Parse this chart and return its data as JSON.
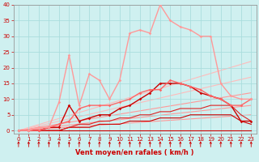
{
  "bg_color": "#cff0f0",
  "grid_color": "#aadddd",
  "xlabel": "Vent moyen/en rafales ( km/h )",
  "xlim": [
    -0.5,
    23.5
  ],
  "ylim": [
    -1,
    40
  ],
  "xticks": [
    0,
    1,
    2,
    3,
    4,
    5,
    6,
    7,
    8,
    9,
    10,
    11,
    12,
    13,
    14,
    15,
    16,
    17,
    18,
    19,
    20,
    21,
    22,
    23
  ],
  "yticks": [
    0,
    5,
    10,
    15,
    20,
    25,
    30,
    35,
    40
  ],
  "linear_lines": [
    {
      "x": [
        0,
        23
      ],
      "y": [
        0,
        5
      ],
      "color": "#ff9999",
      "lw": 0.8
    },
    {
      "x": [
        0,
        23
      ],
      "y": [
        0,
        8
      ],
      "color": "#ff9999",
      "lw": 0.8
    },
    {
      "x": [
        0,
        23
      ],
      "y": [
        0,
        12
      ],
      "color": "#ff9999",
      "lw": 0.8
    },
    {
      "x": [
        0,
        23
      ],
      "y": [
        0,
        17
      ],
      "color": "#ffbbbb",
      "lw": 0.8
    },
    {
      "x": [
        0,
        23
      ],
      "y": [
        0,
        22
      ],
      "color": "#ffbbbb",
      "lw": 0.8
    }
  ],
  "series_flat": {
    "x": [
      0,
      1,
      2,
      3,
      4,
      5,
      6,
      7,
      8,
      9,
      10,
      11,
      12,
      13,
      14,
      15,
      16,
      17,
      18,
      19,
      20,
      21,
      22,
      23
    ],
    "y": [
      0,
      0,
      0,
      0,
      0,
      0,
      0,
      0,
      0,
      0,
      0,
      0,
      0,
      0,
      0,
      0,
      0,
      0,
      0,
      0,
      0,
      0,
      0,
      0
    ],
    "color": "#cc0000",
    "lw": 0.8
  },
  "series_low1": {
    "x": [
      0,
      1,
      2,
      3,
      4,
      5,
      6,
      7,
      8,
      9,
      10,
      11,
      12,
      13,
      14,
      15,
      16,
      17,
      18,
      19,
      20,
      21,
      22,
      23
    ],
    "y": [
      0,
      0,
      0,
      0,
      0,
      1,
      1,
      1,
      2,
      2,
      2,
      3,
      3,
      3,
      4,
      4,
      4,
      5,
      5,
      5,
      5,
      5,
      3,
      2
    ],
    "color": "#cc0000",
    "lw": 0.8
  },
  "series_low2": {
    "x": [
      0,
      1,
      2,
      3,
      4,
      5,
      6,
      7,
      8,
      9,
      10,
      11,
      12,
      13,
      14,
      15,
      16,
      17,
      18,
      19,
      20,
      21,
      22,
      23
    ],
    "y": [
      0,
      0,
      0,
      0,
      0,
      1,
      2,
      2,
      3,
      3,
      4,
      4,
      5,
      5,
      6,
      6,
      7,
      7,
      7,
      8,
      8,
      8,
      5,
      3
    ],
    "color": "#dd2222",
    "lw": 0.8
  },
  "series_mid": {
    "x": [
      0,
      1,
      2,
      3,
      4,
      5,
      6,
      7,
      8,
      9,
      10,
      11,
      12,
      13,
      14,
      15,
      16,
      17,
      18,
      19,
      20,
      21,
      22,
      23
    ],
    "y": [
      0,
      0,
      0,
      1,
      1,
      8,
      3,
      4,
      5,
      5,
      7,
      8,
      10,
      12,
      15,
      15,
      15,
      14,
      12,
      11,
      10,
      8,
      3,
      3
    ],
    "color": "#cc0000",
    "lw": 1.0,
    "marker": "D",
    "ms": 1.8
  },
  "series_upper": {
    "x": [
      0,
      1,
      2,
      3,
      4,
      5,
      6,
      7,
      8,
      9,
      10,
      11,
      12,
      13,
      14,
      15,
      16,
      17,
      18,
      19,
      20,
      21,
      22,
      23
    ],
    "y": [
      0,
      0,
      0,
      1,
      2,
      3,
      7,
      8,
      8,
      8,
      9,
      10,
      12,
      13,
      13,
      16,
      15,
      14,
      13,
      11,
      10,
      8,
      8,
      10
    ],
    "color": "#ff6666",
    "lw": 1.0,
    "marker": "D",
    "ms": 1.8
  },
  "series_peak": {
    "x": [
      0,
      1,
      2,
      3,
      4,
      5,
      6,
      7,
      8,
      9,
      10,
      11,
      12,
      13,
      14,
      15,
      16,
      17,
      18,
      19,
      20,
      21,
      22,
      23
    ],
    "y": [
      0,
      0,
      1,
      1,
      9,
      24,
      8,
      18,
      16,
      10,
      16,
      31,
      32,
      31,
      40,
      35,
      33,
      32,
      30,
      30,
      15,
      11,
      10,
      10
    ],
    "color": "#ff9999",
    "lw": 1.0,
    "marker": "D",
    "ms": 1.8
  },
  "arrow_color": "#cc0000",
  "tick_color": "#cc0000",
  "label_color": "#cc0000",
  "tick_fontsize": 5,
  "xlabel_fontsize": 6
}
